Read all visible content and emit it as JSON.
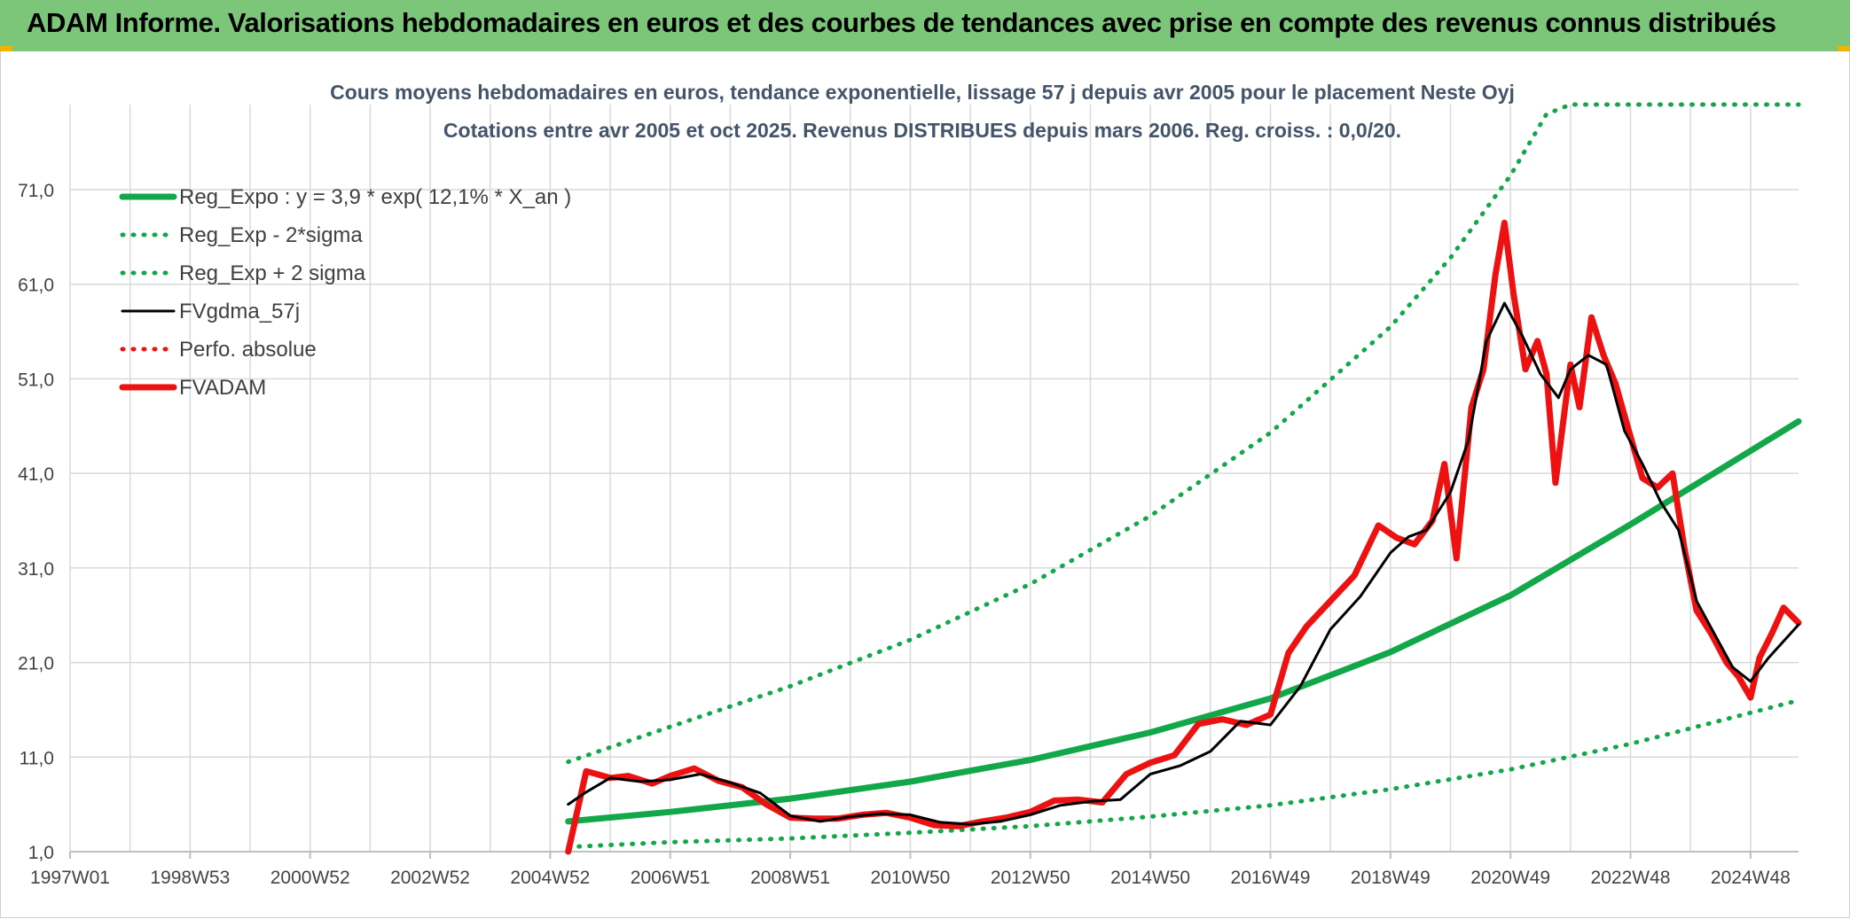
{
  "banner": {
    "title": "ADAM Informe. Valorisations hebdomadaires en euros et des courbes de tendances avec prise en compte des revenus connus distribués"
  },
  "colors": {
    "banner": "#7cc67a",
    "accent": "#f0b400",
    "trend": "#12a84a",
    "smoothed": "#000000",
    "price": "#ee1111",
    "grid": "#d9d9d9"
  },
  "chart_data": {
    "type": "line",
    "title": "Cours moyens hebdomadaires en euros, tendance exponentielle, lissage 57 j depuis avr 2005 pour le placement Neste Oyj",
    "subtitle": "Cotations entre avr 2005 et oct 2025. Revenus DISTRIBUES depuis mars 2006. Reg. croiss. : 0,0/20.",
    "xlabel": "",
    "ylabel": "",
    "x_tick_labels": [
      "1997W01",
      "1998W53",
      "2000W52",
      "2002W52",
      "2004W52",
      "2006W51",
      "2008W51",
      "2010W50",
      "2012W50",
      "2014W50",
      "2016W49",
      "2018W49",
      "2020W49",
      "2022W48",
      "2024W48"
    ],
    "y_tick_labels": [
      "1,0",
      "11,0",
      "21,0",
      "31,0",
      "41,0",
      "51,0",
      "61,0",
      "71,0"
    ],
    "xlim": [
      1997.0,
      2025.8
    ],
    "ylim": [
      1.0,
      80.0
    ],
    "legend_position": "top-left",
    "series": [
      {
        "name": "Reg_Expo : y = 3,9 * exp( 12,1% *  X_an )",
        "style": "solid-thick",
        "color": "#12a84a",
        "x": [
          2005.3,
          2007,
          2009,
          2011,
          2013,
          2015,
          2017,
          2019,
          2021,
          2023,
          2025.8
        ],
        "values": [
          4.2,
          5.2,
          6.6,
          8.4,
          10.7,
          13.6,
          17.2,
          22.1,
          28.1,
          35.6,
          46.5
        ]
      },
      {
        "name": "Reg_Exp - 2*sigma",
        "style": "dotted",
        "color": "#12a84a",
        "x": [
          2005.3,
          2007,
          2009,
          2011,
          2013,
          2015,
          2017,
          2019,
          2021,
          2023,
          2025.8
        ],
        "values": [
          1.5,
          2.0,
          2.4,
          3.0,
          3.7,
          4.7,
          5.9,
          7.6,
          9.7,
          12.4,
          17.0
        ]
      },
      {
        "name": "Reg_Exp + 2 sigma",
        "style": "dotted",
        "color": "#12a84a",
        "x": [
          2005.3,
          2007,
          2009,
          2011,
          2013,
          2015,
          2017,
          2019,
          2020,
          2021,
          2021.6,
          2022,
          2025.8
        ],
        "values": [
          10.5,
          14.2,
          18.5,
          23.4,
          29.3,
          36.5,
          45.3,
          56.5,
          63.8,
          72.5,
          79.0,
          80.0,
          80.0
        ]
      },
      {
        "name": "FVgdma_57j",
        "style": "solid",
        "color": "#000000",
        "x": [
          2005.3,
          2005.6,
          2006,
          2006.5,
          2007,
          2007.5,
          2008,
          2008.5,
          2009,
          2009.5,
          2010,
          2010.5,
          2011,
          2011.5,
          2012,
          2012.5,
          2013,
          2013.5,
          2014,
          2014.5,
          2015,
          2015.5,
          2016,
          2016.5,
          2017,
          2017.5,
          2018,
          2018.5,
          2019,
          2019.3,
          2019.6,
          2020,
          2020.3,
          2020.6,
          2020.9,
          2021.2,
          2021.5,
          2021.8,
          2022,
          2022.3,
          2022.6,
          2022.9,
          2023.2,
          2023.5,
          2023.8,
          2024.1,
          2024.4,
          2024.7,
          2025,
          2025.3,
          2025.8
        ],
        "values": [
          6.0,
          7.3,
          8.8,
          8.4,
          8.6,
          9.2,
          8.3,
          7.2,
          4.8,
          4.2,
          4.7,
          5.0,
          4.9,
          4.1,
          3.9,
          4.2,
          4.9,
          5.9,
          6.3,
          6.5,
          9.2,
          10.1,
          11.6,
          14.8,
          14.4,
          18.5,
          24.5,
          28.0,
          32.6,
          34.3,
          35.0,
          39.0,
          44.5,
          55.0,
          59.0,
          55.5,
          51.5,
          49.0,
          52.0,
          53.5,
          52.5,
          45.5,
          42.0,
          38.0,
          35.0,
          27.5,
          24.0,
          20.5,
          19.0,
          21.5,
          25.0
        ]
      },
      {
        "name": "Perfo. absolue",
        "style": "dotted",
        "color": "#ee1111",
        "x": [
          2005.3,
          2025.8
        ],
        "values": [
          1.0,
          1.0
        ]
      },
      {
        "name": "FVADAM",
        "style": "solid-thick",
        "color": "#ee1111",
        "x": [
          2005.3,
          2005.6,
          2006,
          2006.3,
          2006.7,
          2007,
          2007.4,
          2007.8,
          2008.2,
          2008.6,
          2009,
          2009.4,
          2009.8,
          2010.2,
          2010.6,
          2011,
          2011.4,
          2011.8,
          2012.2,
          2012.6,
          2013,
          2013.4,
          2013.8,
          2014.2,
          2014.6,
          2015,
          2015.4,
          2015.8,
          2016.2,
          2016.6,
          2017,
          2017.3,
          2017.6,
          2018,
          2018.4,
          2018.8,
          2019.1,
          2019.4,
          2019.7,
          2019.9,
          2020.1,
          2020.35,
          2020.55,
          2020.75,
          2020.9,
          2021.05,
          2021.25,
          2021.45,
          2021.6,
          2021.75,
          2022.0,
          2022.15,
          2022.35,
          2022.55,
          2022.75,
          2022.95,
          2023.2,
          2023.45,
          2023.7,
          2023.9,
          2024.1,
          2024.35,
          2024.6,
          2024.8,
          2025.0,
          2025.15,
          2025.35,
          2025.55,
          2025.8
        ],
        "values": [
          1.0,
          9.5,
          8.8,
          9.0,
          8.2,
          9.0,
          9.8,
          8.5,
          7.8,
          6.0,
          4.6,
          4.5,
          4.5,
          4.9,
          5.1,
          4.6,
          3.8,
          3.7,
          4.2,
          4.6,
          5.2,
          6.4,
          6.5,
          6.2,
          9.2,
          10.4,
          11.2,
          14.5,
          15.0,
          14.4,
          15.5,
          22.0,
          24.8,
          27.5,
          30.2,
          35.5,
          34.2,
          33.5,
          36.0,
          42.0,
          32.0,
          48.0,
          52.0,
          62.0,
          67.5,
          60.0,
          52.0,
          55.0,
          51.5,
          40.0,
          52.5,
          48.0,
          57.5,
          53.5,
          50.5,
          46.0,
          40.5,
          39.5,
          41.0,
          33.0,
          26.5,
          24.0,
          21.0,
          19.5,
          17.3,
          21.5,
          24.0,
          26.8,
          25.2
        ]
      }
    ]
  }
}
